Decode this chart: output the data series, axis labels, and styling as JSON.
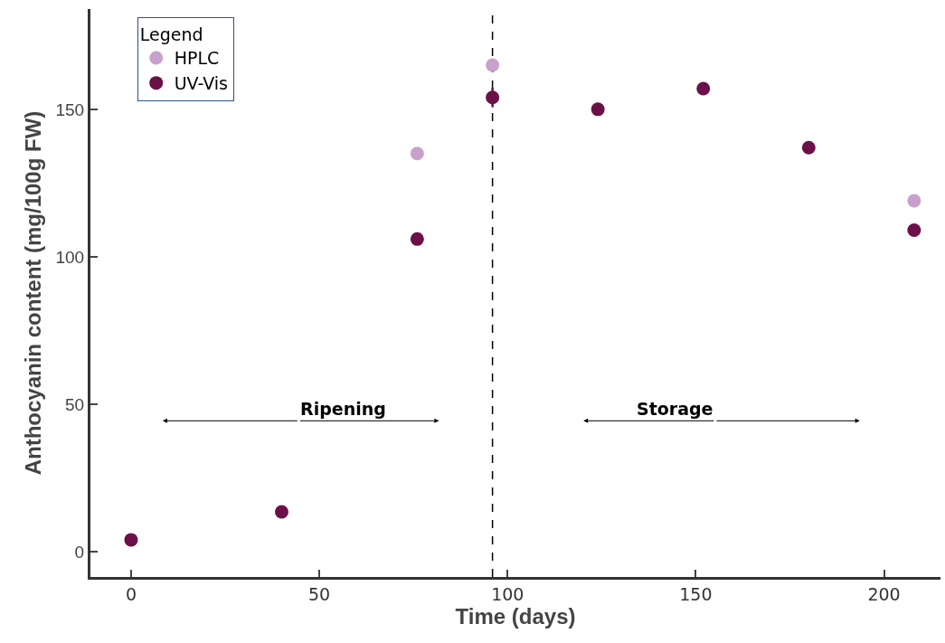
{
  "chart_data": {
    "type": "scatter",
    "xlabel": "Time (days)",
    "ylabel": "Anthocyanin content (mg/100g FW)",
    "legend_title": "Legend",
    "x": [
      0,
      40,
      76,
      96,
      124,
      152,
      180,
      208
    ],
    "series": [
      {
        "name": "HPLC",
        "color": "#c9a0cc",
        "values": [
          null,
          null,
          135,
          165,
          null,
          null,
          null,
          119
        ]
      },
      {
        "name": "UV-Vis",
        "color": "#6b1048",
        "values": [
          4,
          13.5,
          106,
          154,
          150,
          157,
          137,
          109
        ],
        "errors": [
          null,
          null,
          null,
          3.3,
          null,
          null,
          null,
          null
        ]
      }
    ],
    "xlim": [
      -10.8,
      215
    ],
    "xticks": [
      0,
      50,
      100,
      150,
      200
    ],
    "ylim": [
      -8.6,
      184
    ],
    "yticks": [
      0,
      50,
      100,
      150
    ],
    "ref_lines": [
      {
        "axis": "x",
        "value": 96,
        "color": "#000000",
        "line_style": "dashed"
      }
    ],
    "annotations": [
      "Ripening",
      "Storage"
    ],
    "legend": "top left",
    "marker": "circle"
  }
}
